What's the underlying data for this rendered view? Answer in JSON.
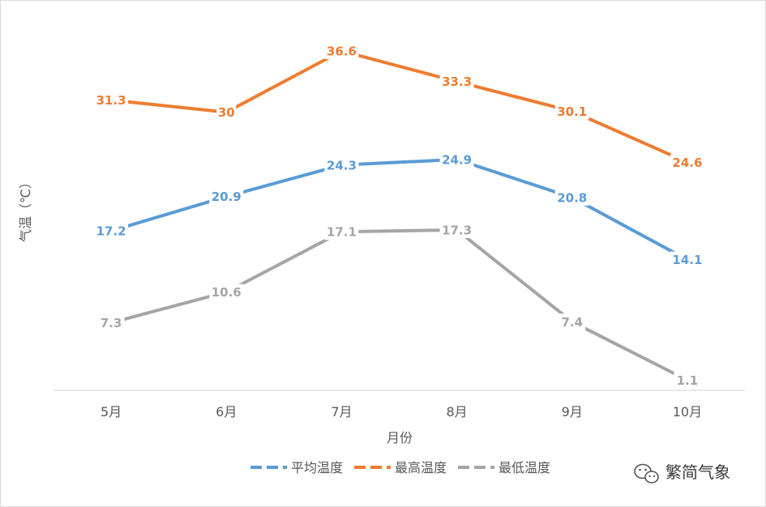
{
  "chart_data": {
    "type": "line",
    "categories": [
      "5月",
      "6月",
      "7月",
      "8月",
      "9月",
      "10月"
    ],
    "series": [
      {
        "name": "平均温度",
        "color": "#5b9bd5",
        "values": [
          17.2,
          20.9,
          24.3,
          24.9,
          20.8,
          14.1
        ],
        "labels": [
          "17.2",
          "20.9",
          "24.3",
          "24.9",
          "20.8",
          "14.1"
        ]
      },
      {
        "name": "最高温度",
        "color": "#ed7d31",
        "values": [
          31.3,
          30,
          36.6,
          33.3,
          30.1,
          24.6
        ],
        "labels": [
          "31.3",
          "30",
          "36.6",
          "33.3",
          "30.1",
          "24.6"
        ]
      },
      {
        "name": "最低温度",
        "color": "#a5a5a5",
        "values": [
          7.3,
          10.6,
          17.1,
          17.3,
          7.4,
          1.1
        ],
        "labels": [
          "7.3",
          "10.6",
          "17.1",
          "17.3",
          "7.4",
          "1.1"
        ]
      }
    ],
    "xlabel": "月份",
    "ylabel": "气温（℃）",
    "grid": false,
    "legend": "bottom"
  },
  "watermark": {
    "icon": "wechat-icon",
    "text": "繁简气象"
  }
}
